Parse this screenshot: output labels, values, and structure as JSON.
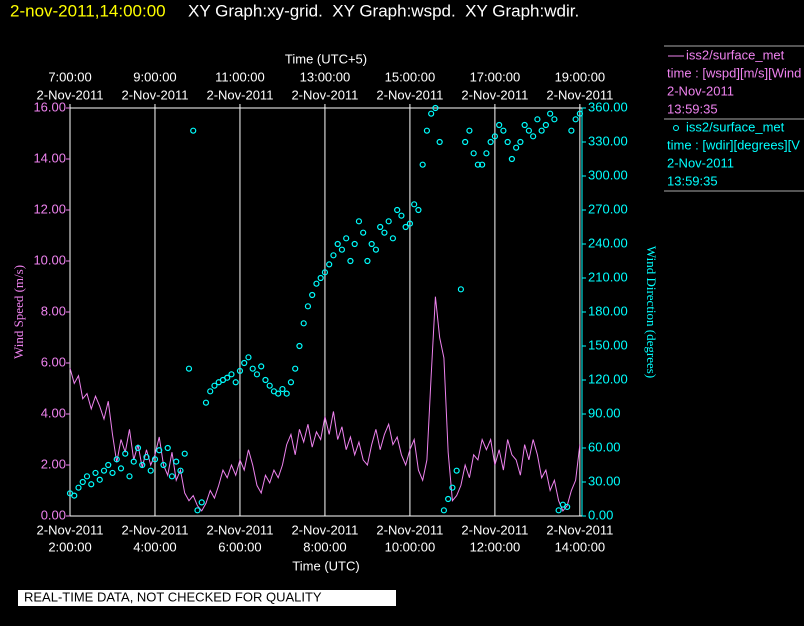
{
  "header": {
    "timestamp": "2-nov-2011,14:00:00",
    "graphs": "XY Graph:xy-grid.  XY Graph:wspd.  XY Graph:wdir."
  },
  "notice": "REAL-TIME DATA, NOT CHECKED FOR QUALITY",
  "chart_data": {
    "type": "line",
    "xlabel": "Time (UTC)",
    "x2label": "Time (UTC+5)",
    "ylabel": "Wind Speed (m/s)",
    "y2label": "Wind Direction (degrees)",
    "xlim": [
      2,
      14.05
    ],
    "x2lim": [
      7,
      19.05
    ],
    "tick_date": "2-Nov-2011",
    "xticks": [
      {
        "value": 2,
        "label": "2:00:00"
      },
      {
        "value": 4,
        "label": "4:00:00"
      },
      {
        "value": 6,
        "label": "6:00:00"
      },
      {
        "value": 8,
        "label": "8:00:00"
      },
      {
        "value": 10,
        "label": "10:00:00"
      },
      {
        "value": 12,
        "label": "12:00:00"
      },
      {
        "value": 14,
        "label": "14:00:00"
      }
    ],
    "x2ticks": [
      {
        "value": 7,
        "label": "7:00:00"
      },
      {
        "value": 9,
        "label": "9:00:00"
      },
      {
        "value": 11,
        "label": "11:00:00"
      },
      {
        "value": 13,
        "label": "13:00:00"
      },
      {
        "value": 15,
        "label": "15:00:00"
      },
      {
        "value": 17,
        "label": "17:00:00"
      },
      {
        "value": 19,
        "label": "19:00:00"
      }
    ],
    "ylim": [
      0,
      16
    ],
    "yticks": [
      {
        "value": 0,
        "label": "0.00"
      },
      {
        "value": 2,
        "label": "2.00"
      },
      {
        "value": 4,
        "label": "4.00"
      },
      {
        "value": 6,
        "label": "6.00"
      },
      {
        "value": 8,
        "label": "8.00"
      },
      {
        "value": 10,
        "label": "10.00"
      },
      {
        "value": 12,
        "label": "12.00"
      },
      {
        "value": 14,
        "label": "14.00"
      },
      {
        "value": 16,
        "label": "16.00"
      }
    ],
    "y2lim": [
      0,
      360
    ],
    "y2ticks": [
      {
        "value": 0,
        "label": "0.00"
      },
      {
        "value": 30,
        "label": "30.00"
      },
      {
        "value": 60,
        "label": "60.00"
      },
      {
        "value": 90,
        "label": "90.00"
      },
      {
        "value": 120,
        "label": "120.00"
      },
      {
        "value": 150,
        "label": "150.00"
      },
      {
        "value": 180,
        "label": "180.00"
      },
      {
        "value": 210,
        "label": "210.00"
      },
      {
        "value": 240,
        "label": "240.00"
      },
      {
        "value": 270,
        "label": "270.00"
      },
      {
        "value": 300,
        "label": "300.00"
      },
      {
        "value": 330,
        "label": "330.00"
      },
      {
        "value": 360,
        "label": "360.00"
      }
    ],
    "grid": true,
    "x": [
      2.0,
      2.1,
      2.2,
      2.3,
      2.4,
      2.5,
      2.6,
      2.7,
      2.8,
      2.9,
      3.0,
      3.1,
      3.2,
      3.3,
      3.4,
      3.5,
      3.6,
      3.7,
      3.8,
      3.9,
      4.0,
      4.1,
      4.2,
      4.3,
      4.4,
      4.5,
      4.6,
      4.7,
      4.8,
      4.9,
      5.0,
      5.1,
      5.2,
      5.3,
      5.4,
      5.5,
      5.6,
      5.7,
      5.8,
      5.9,
      6.0,
      6.1,
      6.2,
      6.3,
      6.4,
      6.5,
      6.6,
      6.7,
      6.8,
      6.9,
      7.0,
      7.1,
      7.2,
      7.3,
      7.4,
      7.5,
      7.6,
      7.7,
      7.8,
      7.9,
      8.0,
      8.1,
      8.2,
      8.3,
      8.4,
      8.5,
      8.6,
      8.7,
      8.8,
      8.9,
      9.0,
      9.1,
      9.2,
      9.3,
      9.4,
      9.5,
      9.6,
      9.7,
      9.8,
      9.9,
      10.0,
      10.1,
      10.2,
      10.3,
      10.4,
      10.5,
      10.6,
      10.7,
      10.8,
      10.9,
      11.0,
      11.1,
      11.2,
      11.3,
      11.4,
      11.5,
      11.6,
      11.7,
      11.8,
      11.9,
      12.0,
      12.1,
      12.2,
      12.3,
      12.4,
      12.5,
      12.6,
      12.7,
      12.8,
      12.9,
      13.0,
      13.1,
      13.2,
      13.3,
      13.4,
      13.5,
      13.6,
      13.7,
      13.8,
      13.9,
      14.0
    ],
    "series": [
      {
        "name": "iss2/surface_met",
        "description": "time : [wspd][m/s][Wind",
        "last_date": "2-Nov-2011",
        "last_time": "13:59:35",
        "color": "#ee82ee",
        "style": "line",
        "values": [
          5.8,
          5.2,
          5.5,
          4.6,
          4.8,
          4.2,
          4.7,
          4.3,
          3.8,
          4.5,
          3.2,
          2.1,
          3.0,
          2.5,
          3.4,
          2.2,
          2.8,
          1.9,
          2.6,
          2.0,
          2.4,
          3.1,
          2.0,
          1.6,
          2.5,
          1.4,
          1.8,
          0.9,
          0.6,
          0.8,
          0.4,
          0.2,
          0.5,
          1.0,
          0.7,
          1.2,
          1.8,
          1.5,
          2.0,
          1.6,
          2.2,
          1.8,
          2.6,
          2.0,
          1.2,
          0.9,
          1.6,
          1.3,
          1.8,
          1.5,
          2.0,
          2.8,
          3.2,
          2.4,
          3.4,
          2.9,
          3.6,
          2.7,
          3.3,
          3.0,
          3.9,
          3.2,
          4.1,
          3.0,
          3.5,
          2.6,
          3.1,
          2.4,
          2.9,
          2.2,
          2.0,
          2.8,
          3.4,
          2.6,
          3.2,
          3.6,
          2.8,
          3.1,
          2.4,
          2.0,
          2.6,
          3.0,
          1.8,
          1.4,
          2.2,
          5.5,
          8.6,
          7.0,
          6.2,
          2.5,
          0.6,
          0.8,
          1.2,
          2.0,
          1.5,
          2.4,
          2.2,
          3.0,
          2.6,
          3.0,
          2.0,
          2.6,
          1.8,
          3.0,
          2.4,
          2.2,
          1.6,
          2.8,
          2.2,
          3.0,
          2.4,
          1.5,
          1.8,
          1.0,
          1.4,
          0.6,
          0.2,
          0.4,
          1.0,
          1.4,
          2.8
        ]
      },
      {
        "name": "iss2/surface_met",
        "description": "time : [wdir][degrees][V",
        "last_date": "2-Nov-2011",
        "last_time": "13:59:35",
        "color": "#00ffff",
        "style": "scatter",
        "axis": "y2",
        "values": [
          20,
          18,
          25,
          30,
          35,
          28,
          38,
          32,
          40,
          45,
          38,
          50,
          42,
          55,
          35,
          48,
          60,
          45,
          52,
          40,
          50,
          58,
          45,
          60,
          35,
          48,
          40,
          55,
          130,
          340,
          5,
          12,
          100,
          110,
          115,
          118,
          120,
          122,
          125,
          118,
          128,
          135,
          140,
          130,
          125,
          132,
          120,
          115,
          110,
          108,
          112,
          108,
          118,
          130,
          150,
          170,
          185,
          195,
          205,
          210,
          215,
          222,
          230,
          240,
          235,
          245,
          225,
          240,
          260,
          250,
          225,
          240,
          235,
          255,
          250,
          260,
          245,
          270,
          265,
          255,
          258,
          275,
          270,
          310,
          340,
          355,
          360,
          330,
          5,
          15,
          25,
          40,
          200,
          330,
          340,
          320,
          310,
          310,
          320,
          330,
          335,
          345,
          340,
          330,
          315,
          325,
          330,
          345,
          340,
          335,
          350,
          340,
          345,
          355,
          350,
          5,
          10,
          8,
          340,
          350,
          355
        ]
      }
    ]
  }
}
